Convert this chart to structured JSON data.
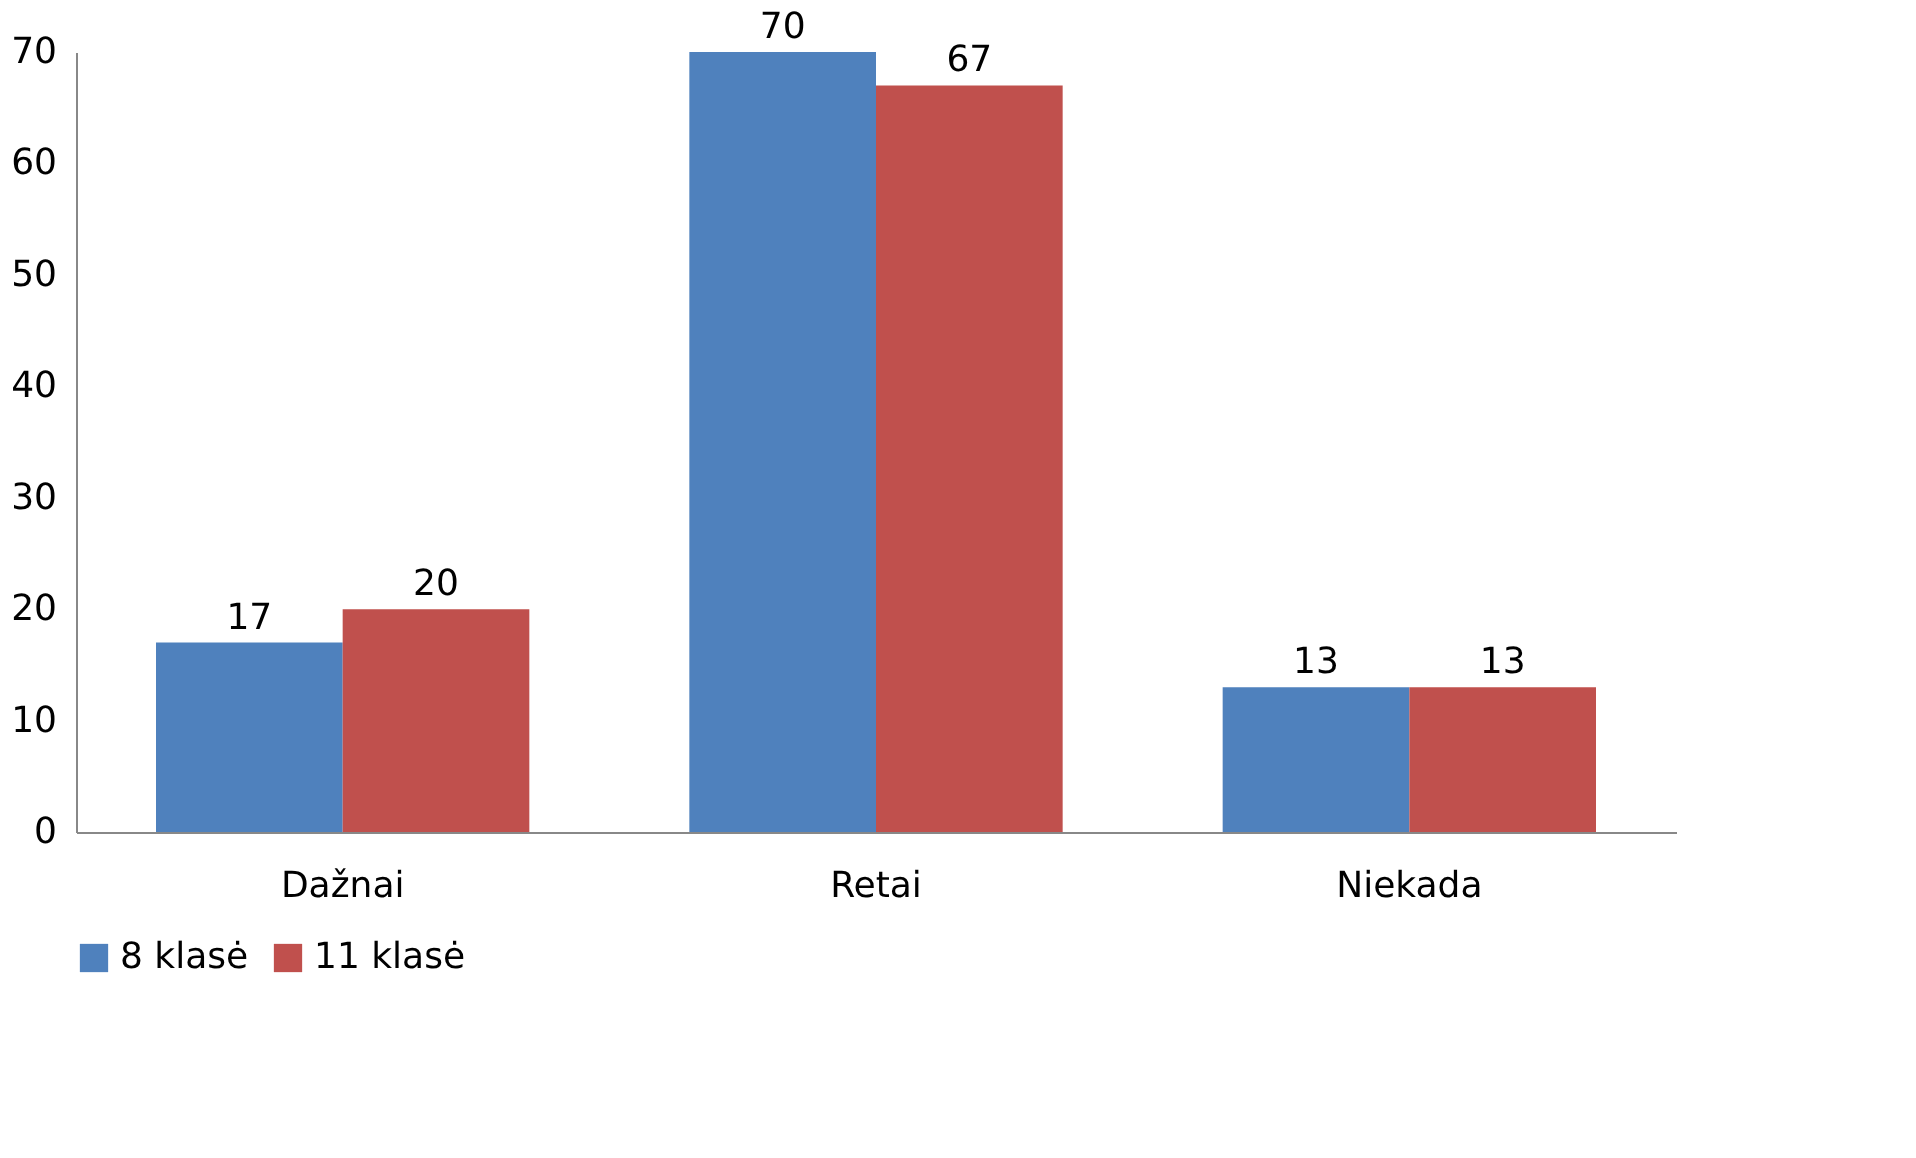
{
  "chart_data": {
    "type": "bar",
    "categories": [
      "Dažnai",
      "Retai",
      "Niekada"
    ],
    "series": [
      {
        "name": "8 klasė",
        "color": "#4f81bd",
        "values": [
          17,
          70,
          13
        ]
      },
      {
        "name": "11 klasė",
        "color": "#c0504d",
        "values": [
          20,
          67,
          13
        ]
      }
    ],
    "ylim": [
      0,
      70
    ],
    "yticks": [
      0,
      10,
      20,
      30,
      40,
      50,
      60,
      70
    ],
    "grid": false,
    "legend": "bottom",
    "data_labels": true
  }
}
